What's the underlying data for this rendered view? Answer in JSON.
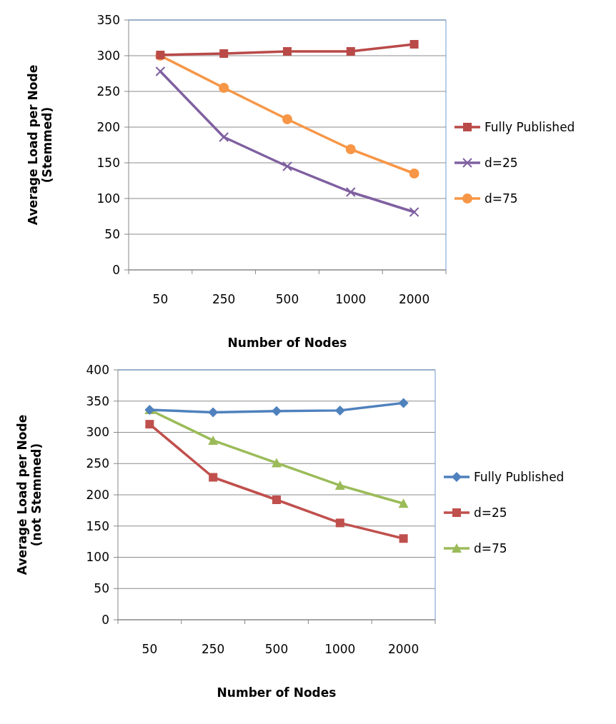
{
  "chart_data": [
    {
      "type": "line",
      "xlabel": "Number of Nodes",
      "ylabel": "Average Load per Node (Stemmed)",
      "categories": [
        "50",
        "250",
        "500",
        "1000",
        "2000"
      ],
      "ylim": [
        0,
        350
      ],
      "yticks": [
        0,
        50,
        100,
        150,
        200,
        250,
        300,
        350
      ],
      "grid": "y",
      "legend": "right",
      "series": [
        {
          "name": "Fully Published",
          "color": "#b94a48",
          "marker": "square",
          "values": [
            301,
            303,
            306,
            306,
            316
          ]
        },
        {
          "name": "d=25",
          "color": "#7f60a0",
          "marker": "cross",
          "values": [
            278,
            186,
            145,
            109,
            81
          ]
        },
        {
          "name": "d=75",
          "color": "#f79646",
          "marker": "circle",
          "values": [
            300,
            255,
            211,
            169,
            135
          ]
        }
      ]
    },
    {
      "type": "line",
      "xlabel": "Number of Nodes",
      "ylabel": "Average Load per Node (not Stemmed)",
      "categories": [
        "50",
        "250",
        "500",
        "1000",
        "2000"
      ],
      "ylim": [
        0,
        400
      ],
      "yticks": [
        0,
        50,
        100,
        150,
        200,
        250,
        300,
        350,
        400
      ],
      "grid": "y",
      "legend": "right",
      "series": [
        {
          "name": "Fully Published",
          "color": "#4f81bd",
          "marker": "diamond",
          "values": [
            336,
            332,
            334,
            335,
            347
          ]
        },
        {
          "name": "d=25",
          "color": "#c0504d",
          "marker": "square",
          "values": [
            313,
            228,
            192,
            155,
            130
          ]
        },
        {
          "name": "d=75",
          "color": "#9bbb59",
          "marker": "triangle",
          "values": [
            336,
            287,
            251,
            215,
            186
          ]
        }
      ]
    }
  ]
}
